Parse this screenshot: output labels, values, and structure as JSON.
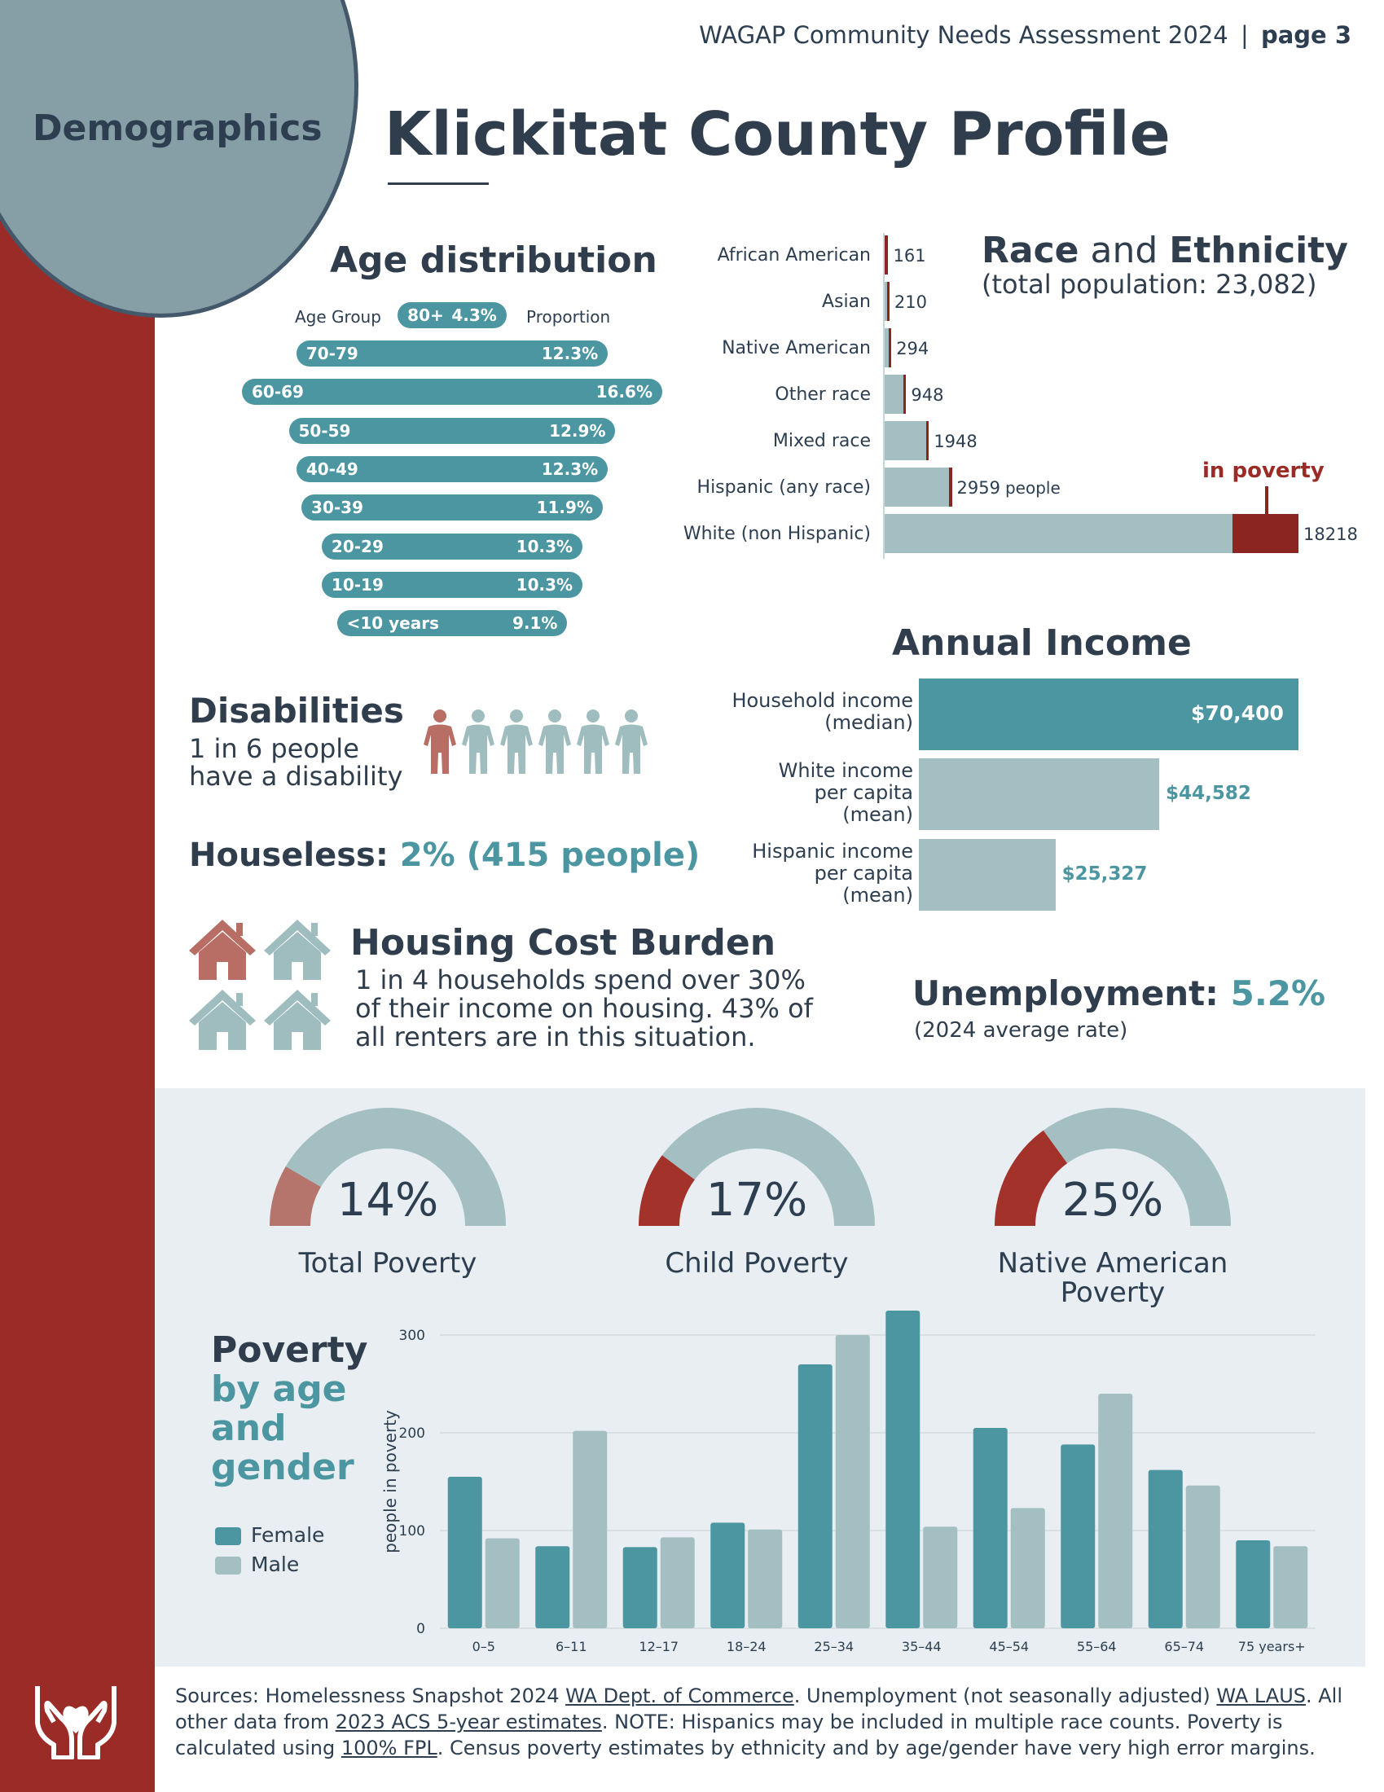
{
  "header": {
    "doc_title": "WAGAP Community Needs Assessment 2024",
    "separator": "|",
    "page_label": "page 3"
  },
  "section_label": "Demographics",
  "page_title": "Klickitat County Profile",
  "colors": {
    "brand_red": "#9b2b26",
    "teal": "#4b96a1",
    "light_teal": "#a3bfc2",
    "navy": "#2f3d4c",
    "poverty_red": "#8b2521"
  },
  "age": {
    "heading": "Age distribution",
    "col_group": "Age Group",
    "col_proportion": "Proportion",
    "groups": [
      {
        "label": "80+",
        "pct": "4.3%",
        "value": 4.3
      },
      {
        "label": "70-79",
        "pct": "12.3%",
        "value": 12.3
      },
      {
        "label": "60-69",
        "pct": "16.6%",
        "value": 16.6
      },
      {
        "label": "50-59",
        "pct": "12.9%",
        "value": 12.9
      },
      {
        "label": "40-49",
        "pct": "12.3%",
        "value": 12.3
      },
      {
        "label": "30-39",
        "pct": "11.9%",
        "value": 11.9
      },
      {
        "label": "20-29",
        "pct": "10.3%",
        "value": 10.3
      },
      {
        "label": "10-19",
        "pct": "10.3%",
        "value": 10.3
      },
      {
        "label": "<10 years",
        "pct": "9.1%",
        "value": 9.1
      }
    ]
  },
  "race": {
    "heading_a": "Race",
    "heading_and": "and",
    "heading_b": "Ethnicity",
    "subheading": "(total population: 23,082)",
    "in_poverty_label": "in poverty",
    "people_suffix": "people",
    "max_value": 18218,
    "rows": [
      {
        "label": "African American",
        "value": 161,
        "value_label": "161",
        "poverty": 0.9
      },
      {
        "label": "Asian",
        "value": 210,
        "value_label": "210",
        "poverty": 0.3
      },
      {
        "label": "Native American",
        "value": 294,
        "value_label": "294",
        "poverty": 0.25
      },
      {
        "label": "Other race",
        "value": 948,
        "value_label": "948",
        "poverty": 0.12
      },
      {
        "label": "Mixed race",
        "value": 1948,
        "value_label": "1948",
        "poverty": 0.06
      },
      {
        "label": "Hispanic (any race)",
        "value": 2959,
        "value_label": "2959",
        "poverty": 0.04
      },
      {
        "label": "White (non Hispanic)",
        "value": 18218,
        "value_label": "18218",
        "poverty": 0.16
      }
    ]
  },
  "income": {
    "heading": "Annual Income",
    "max_value": 70400,
    "rows": [
      {
        "label_lines": [
          "Household income",
          "(median)"
        ],
        "value": 70400,
        "value_label": "$70,400"
      },
      {
        "label_lines": [
          "White income",
          "per capita",
          "(mean)"
        ],
        "value": 44582,
        "value_label": "$44,582"
      },
      {
        "label_lines": [
          "Hispanic income",
          "per capita",
          "(mean)"
        ],
        "value": 25327,
        "value_label": "$25,327"
      }
    ]
  },
  "disabilities": {
    "heading": "Disabilities",
    "line1": "1 in 6 people",
    "line2": "have a disability",
    "highlighted": 1,
    "total": 6
  },
  "houseless": {
    "label": "Houseless:",
    "value": "2% (415 people)"
  },
  "housing": {
    "heading": "Housing Cost Burden",
    "line1": "1 in 4 households spend over 30%",
    "line2": "of their income on housing.  43% of",
    "line3": "all renters are in this situation.",
    "highlighted": 1,
    "total": 4
  },
  "unemployment": {
    "label": "Unemployment:",
    "value": "5.2%",
    "note": "(2024 average rate)"
  },
  "gauges": [
    {
      "pct": "14%",
      "value": 14,
      "label": "Total Poverty"
    },
    {
      "pct": "17%",
      "value": 17,
      "label": "Child Poverty"
    },
    {
      "pct": "25%",
      "value": 25,
      "label": "Native American Poverty"
    }
  ],
  "poverty_age": {
    "heading_1": "Poverty",
    "heading_2": "by age",
    "heading_3": "and",
    "heading_4": "gender",
    "legend_female": "Female",
    "legend_male": "Male"
  },
  "chart_data": {
    "type": "bar",
    "title": "Poverty by age and gender",
    "xlabel": "",
    "ylabel": "people in poverty",
    "ylim": [
      0,
      330
    ],
    "yticks": [
      0,
      100,
      200,
      300
    ],
    "grid": true,
    "categories": [
      "0–5",
      "6–11",
      "12–17",
      "18–24",
      "25–34",
      "35–44",
      "45–54",
      "55–64",
      "65–74",
      "75 years+"
    ],
    "series": [
      {
        "name": "Female",
        "color": "#4b96a1",
        "values": [
          155,
          84,
          83,
          108,
          270,
          325,
          205,
          188,
          162,
          90
        ]
      },
      {
        "name": "Male",
        "color": "#a3bfc2",
        "values": [
          92,
          202,
          93,
          101,
          300,
          104,
          123,
          240,
          146,
          84
        ]
      }
    ]
  },
  "footer": {
    "s1": "Sources:  Homelessness Snapshot 2024 ",
    "l1": "WA Dept. of Commerce",
    "s2": ". Unemployment (not seasonally adjusted) ",
    "l2": "WA LAUS",
    "s3": ". All other data from ",
    "l3": "2023 ACS 5-year estimates",
    "s4": ".  NOTE: Hispanics may be included in multiple race counts.  Poverty is calculated using ",
    "l4": "100% FPL",
    "s5": ".  Census poverty estimates by ethnicity and by age/gender have very high error margins."
  }
}
